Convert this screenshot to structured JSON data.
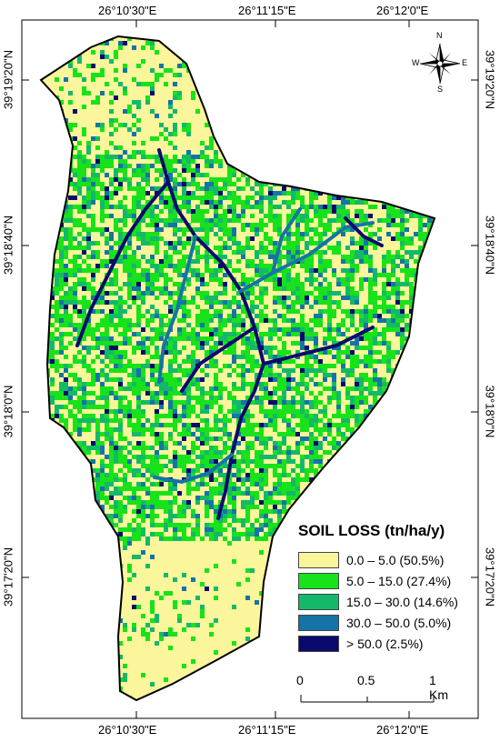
{
  "top_lon_labels": [
    "26°10'30\"E",
    "26°11'15\"E",
    "26°12'0\"E"
  ],
  "bottom_lon_labels": [
    "26°10'30\"E",
    "26°11'15\"E",
    "26°12'0\"E"
  ],
  "left_lat_labels": [
    "39°19'20\"N",
    "39°18'40\"N",
    "39°18'0\"N",
    "39°17'20\"N"
  ],
  "right_lat_labels": [
    "39°19'20\"N",
    "39°18'40\"N",
    "39°18'0\"N",
    "39°17'20\"N"
  ],
  "north_arrow": {
    "n": "N",
    "s": "S",
    "e": "E",
    "w": "W"
  },
  "legend": {
    "title": "SOIL LOSS (tn/ha/y)",
    "items": [
      {
        "label": "0.0 – 5.0 (50.5%)",
        "color": "#fbf59b"
      },
      {
        "label": "5.0 – 15.0 (27.4%)",
        "color": "#18e21a"
      },
      {
        "label": "15.0 – 30.0 (14.6%)",
        "color": "#14b86b"
      },
      {
        "label": "30.0 – 50.0 (5.0%)",
        "color": "#1673a7"
      },
      {
        "label": "> 50.0 (2.5%)",
        "color": "#0a0a6e"
      }
    ]
  },
  "scale_bar": {
    "labels": [
      "0",
      "0.5",
      "1 Km"
    ]
  }
}
